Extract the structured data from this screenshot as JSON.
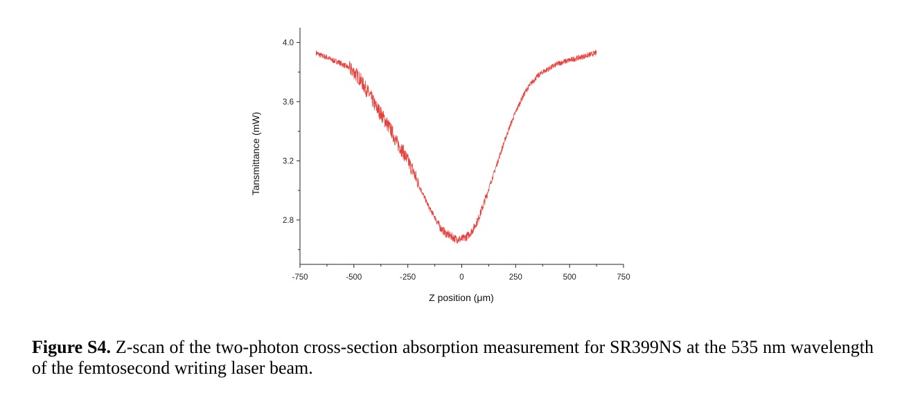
{
  "chart_data": {
    "type": "line",
    "xlabel": "Z position (μm)",
    "ylabel": "Tansmittance (mW)",
    "xlim": [
      -750,
      750
    ],
    "ylim": [
      2.5,
      4.1
    ],
    "x_ticks": [
      -750,
      -500,
      -250,
      0,
      250,
      500,
      750
    ],
    "x_tick_labels": [
      "-750",
      "-500",
      "-250",
      "0",
      "250",
      "500",
      "750"
    ],
    "y_ticks": [
      2.8,
      3.2,
      3.6,
      4.0
    ],
    "y_tick_labels": [
      "2.8",
      "3.2",
      "3.6",
      "4.0"
    ],
    "grid": false,
    "legend": "none",
    "series": [
      {
        "color": "#e8413c",
        "x": [
          -675,
          -650,
          -625,
          -600,
          -575,
          -550,
          -525,
          -500,
          -475,
          -450,
          -425,
          -400,
          -375,
          -350,
          -325,
          -300,
          -275,
          -250,
          -225,
          -200,
          -175,
          -150,
          -125,
          -100,
          -75,
          -50,
          -25,
          0,
          25,
          50,
          75,
          100,
          125,
          150,
          175,
          200,
          225,
          250,
          275,
          300,
          325,
          350,
          375,
          400,
          425,
          450,
          475,
          500,
          525,
          550,
          575,
          600,
          625
        ],
        "y": [
          3.93,
          3.91,
          3.9,
          3.88,
          3.87,
          3.85,
          3.83,
          3.8,
          3.76,
          3.7,
          3.64,
          3.57,
          3.52,
          3.46,
          3.4,
          3.32,
          3.27,
          3.2,
          3.13,
          3.04,
          2.96,
          2.88,
          2.82,
          2.75,
          2.71,
          2.69,
          2.67,
          2.67,
          2.69,
          2.73,
          2.8,
          2.9,
          3.01,
          3.12,
          3.23,
          3.34,
          3.44,
          3.53,
          3.61,
          3.68,
          3.73,
          3.77,
          3.8,
          3.82,
          3.84,
          3.86,
          3.87,
          3.88,
          3.89,
          3.9,
          3.91,
          3.92,
          3.93
        ]
      }
    ]
  },
  "caption": {
    "label": "Figure S4.",
    "text": " Z-scan of the two-photon cross-section absorption measurement for SR399NS at the 535 nm wavelength of the femtosecond writing laser beam."
  }
}
